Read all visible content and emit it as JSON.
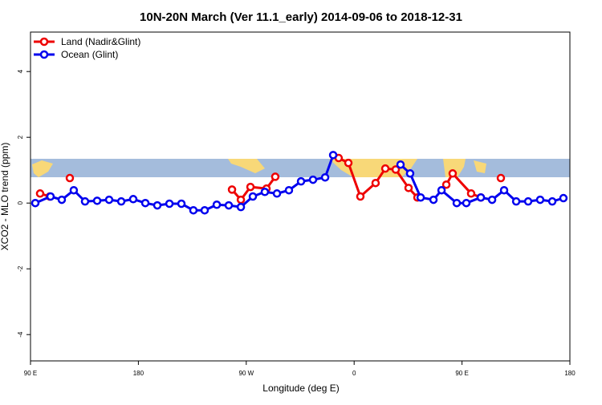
{
  "chart_data": {
    "type": "line",
    "title": "10N-20N March (Ver 11.1_early)   2014-09-06 to 2018-12-31",
    "x_label": "Longitude (deg E)",
    "y_label": "XCO2 - MLO trend (ppm)",
    "xlim": [
      90,
      540
    ],
    "xticks": [
      {
        "value": 90,
        "label": "90 E"
      },
      180,
      {
        "value": 270,
        "label": "90 W"
      },
      {
        "value": 360,
        "label": "0"
      },
      {
        "value": 450,
        "label": "90 E"
      },
      {
        "value": 540,
        "label": "180"
      }
    ],
    "ylim": [
      -4.8,
      5.2
    ],
    "yticks": [
      -4,
      -2,
      0,
      2,
      4
    ],
    "legend": "top-left",
    "series": [
      {
        "name": "Land (Nadir&Glint)",
        "color": "#ee0000",
        "x": [
          98.0,
          106.1,
          null,
          122.8,
          null,
          258.1,
          265.5,
          273.5,
          286.9,
          294.2,
          null,
          347.1,
          355.2,
          365.2,
          377.9,
          386.0,
          394.7,
          405.4,
          412.8,
          null,
          436.9,
          442.2,
          457.6,
          465.7,
          null,
          482.4
        ],
        "values": [
          0.29,
          0.2,
          null,
          0.76,
          null,
          0.41,
          0.1,
          0.49,
          0.44,
          0.8,
          null,
          1.37,
          1.22,
          0.2,
          0.61,
          1.05,
          1.02,
          0.46,
          0.17,
          null,
          0.56,
          0.9,
          0.29,
          0.17,
          null,
          0.76
        ]
      },
      {
        "name": "Ocean (Glint)",
        "color": "#0000ee",
        "x": [
          94.0,
          106.7,
          116.1,
          126.1,
          135.5,
          145.6,
          155.6,
          165.7,
          175.7,
          185.8,
          195.8,
          205.9,
          215.9,
          225.9,
          235.3,
          245.4,
          255.4,
          265.5,
          275.5,
          285.5,
          295.6,
          305.6,
          315.7,
          325.7,
          335.8,
          342.5,
          null,
          398.7,
          406.7,
          415.5,
          426.2,
          432.9,
          445.6,
          453.6,
          465.7,
          475.1,
          485.1,
          495.2,
          505.2,
          515.2,
          525.3,
          534.6
        ],
        "values": [
          0,
          0.2,
          0.1,
          0.39,
          0.05,
          0.07,
          0.1,
          0.05,
          0.12,
          0,
          -0.07,
          -0.02,
          -0.02,
          -0.22,
          -0.22,
          -0.05,
          -0.07,
          -0.12,
          0.2,
          0.34,
          0.29,
          0.39,
          0.66,
          0.71,
          0.78,
          1.46,
          null,
          1.17,
          0.9,
          0.17,
          0.1,
          0.39,
          0,
          0,
          0.17,
          0.1,
          0.39,
          0.05,
          0.05,
          0.1,
          0.05,
          0.15
        ]
      }
    ]
  }
}
